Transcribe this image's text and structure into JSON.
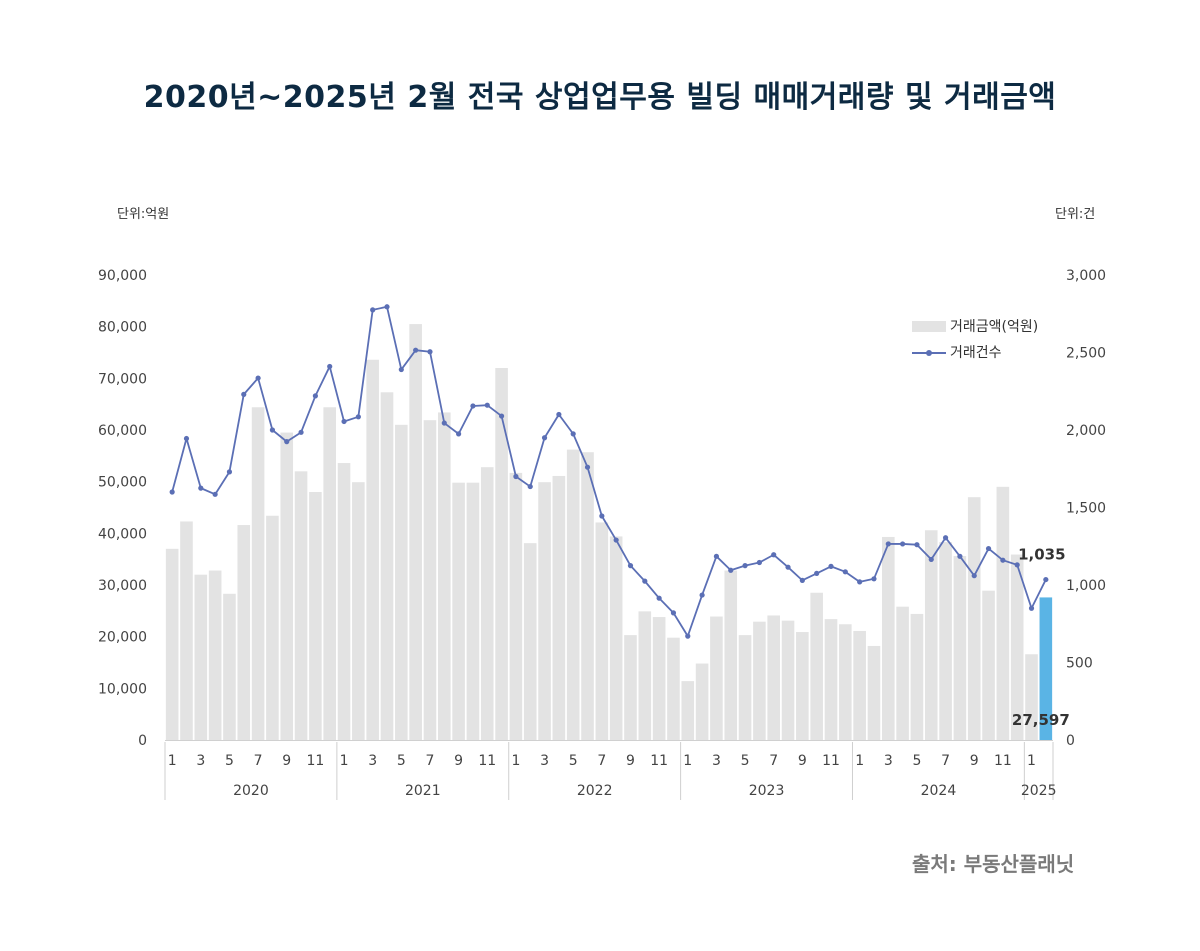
{
  "title": "2020년~2025년 2월 전국 상업업무용 빌딩 매매거래량 및 거래금액",
  "unit_left": "단위:억원",
  "unit_right": "단위:건",
  "source": "출처: 부동산플래닛",
  "colors": {
    "bar": "#e3e3e3",
    "bar_highlight": "#5ab4e5",
    "line": "#5b6fb5",
    "axis_text": "#444444"
  },
  "chart_data": {
    "type": "bar+line",
    "title": "2020년~2025년 2월 전국 상업업무용 빌딩 매매거래량 및 거래금액",
    "x": [
      "2020-01",
      "2020-02",
      "2020-03",
      "2020-04",
      "2020-05",
      "2020-06",
      "2020-07",
      "2020-08",
      "2020-09",
      "2020-10",
      "2020-11",
      "2020-12",
      "2021-01",
      "2021-02",
      "2021-03",
      "2021-04",
      "2021-05",
      "2021-06",
      "2021-07",
      "2021-08",
      "2021-09",
      "2021-10",
      "2021-11",
      "2021-12",
      "2022-01",
      "2022-02",
      "2022-03",
      "2022-04",
      "2022-05",
      "2022-06",
      "2022-07",
      "2022-08",
      "2022-09",
      "2022-10",
      "2022-11",
      "2022-12",
      "2023-01",
      "2023-02",
      "2023-03",
      "2023-04",
      "2023-05",
      "2023-06",
      "2023-07",
      "2023-08",
      "2023-09",
      "2023-10",
      "2023-11",
      "2023-12",
      "2024-01",
      "2024-02",
      "2024-03",
      "2024-04",
      "2024-05",
      "2024-06",
      "2024-07",
      "2024-08",
      "2024-09",
      "2024-10",
      "2024-11",
      "2024-12",
      "2025-01",
      "2025-02"
    ],
    "x_tick_labels": [
      "1",
      "",
      "3",
      "",
      "5",
      "",
      "7",
      "",
      "9",
      "",
      "11",
      "",
      "1",
      "",
      "3",
      "",
      "5",
      "",
      "7",
      "",
      "9",
      "",
      "11",
      "",
      "1",
      "",
      "3",
      "",
      "5",
      "",
      "7",
      "",
      "9",
      "",
      "11",
      "",
      "1",
      "",
      "3",
      "",
      "5",
      "",
      "7",
      "",
      "9",
      "",
      "11",
      "",
      "1",
      "",
      "3",
      "",
      "5",
      "",
      "7",
      "",
      "9",
      "",
      "11",
      "",
      "1",
      ""
    ],
    "years": [
      "2020",
      "2021",
      "2022",
      "2023",
      "2024",
      "2025"
    ],
    "series": [
      {
        "name": "거래금액(억원)",
        "type": "bar",
        "axis": "left",
        "values": [
          37000,
          42300,
          32000,
          32800,
          28300,
          41600,
          64400,
          43400,
          59500,
          52000,
          48000,
          64400,
          53600,
          49900,
          73600,
          67300,
          61000,
          80500,
          61900,
          63400,
          49800,
          49800,
          52800,
          72000,
          51700,
          38100,
          49900,
          51100,
          56200,
          55700,
          42100,
          39400,
          20300,
          24900,
          23800,
          19800,
          11400,
          14800,
          23900,
          32800,
          20300,
          22900,
          24100,
          23100,
          20900,
          28500,
          23400,
          22400,
          21100,
          18200,
          39300,
          25800,
          24400,
          40600,
          38300,
          35600,
          47000,
          28900,
          49000,
          35900,
          16600,
          27597
        ]
      },
      {
        "name": "거래건수",
        "type": "line",
        "axis": "right",
        "values": [
          1600,
          1945,
          1625,
          1585,
          1730,
          2230,
          2335,
          2000,
          1925,
          1985,
          2220,
          2410,
          2055,
          2085,
          2775,
          2795,
          2390,
          2515,
          2505,
          2045,
          1975,
          2155,
          2160,
          2090,
          1700,
          1635,
          1950,
          2100,
          1975,
          1760,
          1445,
          1290,
          1125,
          1025,
          915,
          820,
          670,
          935,
          1185,
          1095,
          1125,
          1145,
          1195,
          1115,
          1030,
          1075,
          1120,
          1085,
          1020,
          1040,
          1265,
          1265,
          1260,
          1165,
          1305,
          1185,
          1060,
          1235,
          1160,
          1130,
          850,
          1035
        ]
      }
    ],
    "left_axis": {
      "min": 0,
      "max": 90000,
      "step": 10000,
      "labels": [
        "0",
        "10,000",
        "20,000",
        "30,000",
        "40,000",
        "50,000",
        "60,000",
        "70,000",
        "80,000",
        "90,000"
      ]
    },
    "right_axis": {
      "min": 0,
      "max": 3000,
      "step": 500,
      "labels": [
        "0",
        "500",
        "1,000",
        "1,500",
        "2,000",
        "2,500",
        "3,000"
      ]
    },
    "annotations": {
      "last_bar": "27,597",
      "last_point": "1,035"
    },
    "highlight_index": 61,
    "legend_position": "top-right",
    "grid": false
  }
}
